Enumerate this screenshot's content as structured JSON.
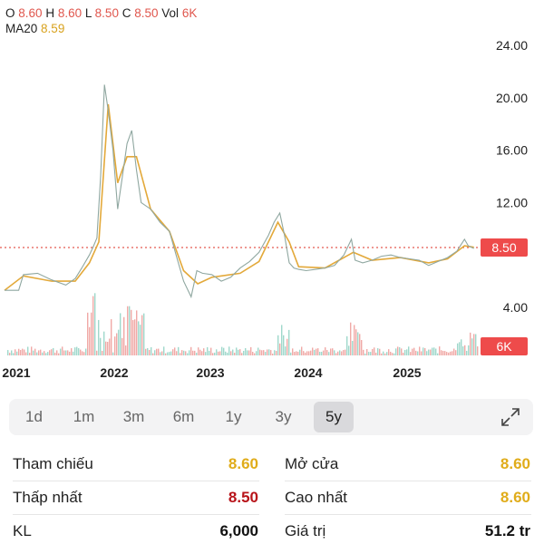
{
  "ohlc": {
    "o_label": "O",
    "o_value": "8.60",
    "h_label": "H",
    "h_value": "8.60",
    "l_label": "L",
    "l_value": "8.50",
    "c_label": "C",
    "c_value": "8.50",
    "vol_label": "Vol",
    "vol_value": "6K",
    "ma_label": "MA20",
    "ma_value": "8.59"
  },
  "chart": {
    "y_ticks": [
      "24.00",
      "20.00",
      "16.00",
      "12.00",
      "4.00"
    ],
    "x_ticks": [
      "2021",
      "2022",
      "2023",
      "2024",
      "2025"
    ],
    "price_tag": "8.50",
    "vol_tag": "6K",
    "colors": {
      "price_line": "#8fa7a0",
      "ma_line": "#e3a93a",
      "up": "#3fae96",
      "down": "#e35b58",
      "tag": "#ee4b4b"
    }
  },
  "chart_data": {
    "type": "line",
    "series": [
      {
        "name": "Close",
        "x": [
          2020.8,
          2020.95,
          2021.0,
          2021.15,
          2021.3,
          2021.45,
          2021.55,
          2021.62,
          2021.7,
          2021.74,
          2021.78,
          2021.82,
          2021.86,
          2021.9,
          2021.95,
          2022.0,
          2022.05,
          2022.1,
          2022.15,
          2022.2,
          2022.25,
          2022.35,
          2022.45,
          2022.55,
          2022.62,
          2022.7,
          2022.78,
          2022.84,
          2022.9,
          2023.0,
          2023.1,
          2023.2,
          2023.3,
          2023.4,
          2023.5,
          2023.6,
          2023.66,
          2023.72,
          2023.77,
          2023.82,
          2023.87,
          2023.92,
          2024.0,
          2024.1,
          2024.2,
          2024.3,
          2024.4,
          2024.48,
          2024.52,
          2024.6,
          2024.7,
          2024.8,
          2024.9,
          2025.0,
          2025.1,
          2025.2,
          2025.3,
          2025.4,
          2025.5,
          2025.6,
          2025.68,
          2025.72,
          2025.78
        ],
        "values": [
          5.3,
          5.3,
          6.5,
          6.6,
          6.1,
          5.7,
          6.2,
          7.0,
          8.0,
          8.6,
          9.3,
          14.0,
          21.0,
          19.0,
          16.0,
          11.5,
          14.0,
          16.5,
          17.5,
          14.5,
          12.0,
          11.5,
          10.5,
          9.8,
          8.0,
          6.0,
          4.8,
          6.8,
          6.6,
          6.5,
          6.0,
          6.3,
          7.0,
          7.5,
          8.2,
          9.5,
          10.5,
          11.2,
          9.5,
          7.4,
          7.0,
          6.9,
          6.8,
          6.9,
          7.0,
          7.2,
          8.0,
          9.2,
          7.6,
          7.4,
          7.6,
          7.9,
          8.0,
          7.8,
          7.7,
          7.6,
          7.2,
          7.5,
          7.8,
          8.3,
          9.2,
          8.7,
          8.5
        ]
      },
      {
        "name": "MA20",
        "x": [
          2020.8,
          2021.0,
          2021.3,
          2021.55,
          2021.7,
          2021.8,
          2021.9,
          2022.0,
          2022.1,
          2022.2,
          2022.35,
          2022.55,
          2022.7,
          2022.85,
          2023.0,
          2023.3,
          2023.5,
          2023.7,
          2023.82,
          2023.92,
          2024.2,
          2024.5,
          2024.7,
          2025.0,
          2025.3,
          2025.5,
          2025.68,
          2025.78
        ],
        "values": [
          5.3,
          6.4,
          6.0,
          6.0,
          7.4,
          9.0,
          19.5,
          13.5,
          15.5,
          15.5,
          11.5,
          9.8,
          6.8,
          5.8,
          6.3,
          6.6,
          7.5,
          10.5,
          9.0,
          7.1,
          7.0,
          8.2,
          7.6,
          7.8,
          7.4,
          7.7,
          8.7,
          8.59
        ]
      }
    ],
    "ylim": [
      2.0,
      25.0
    ],
    "xlim": [
      2020.8,
      2025.85
    ],
    "grid": false
  },
  "ranges": [
    "1d",
    "1m",
    "3m",
    "6m",
    "1y",
    "3y",
    "5y"
  ],
  "active_range": "5y",
  "stats": {
    "ref_label": "Tham chiếu",
    "ref_value": "8.60",
    "open_label": "Mở cửa",
    "open_value": "8.60",
    "low_label": "Thấp nhất",
    "low_value": "8.50",
    "high_label": "Cao nhất",
    "high_value": "8.60",
    "vol_label": "KL",
    "vol_value": "6,000",
    "val_label": "Giá trị",
    "val_value": "51.2 tr"
  }
}
